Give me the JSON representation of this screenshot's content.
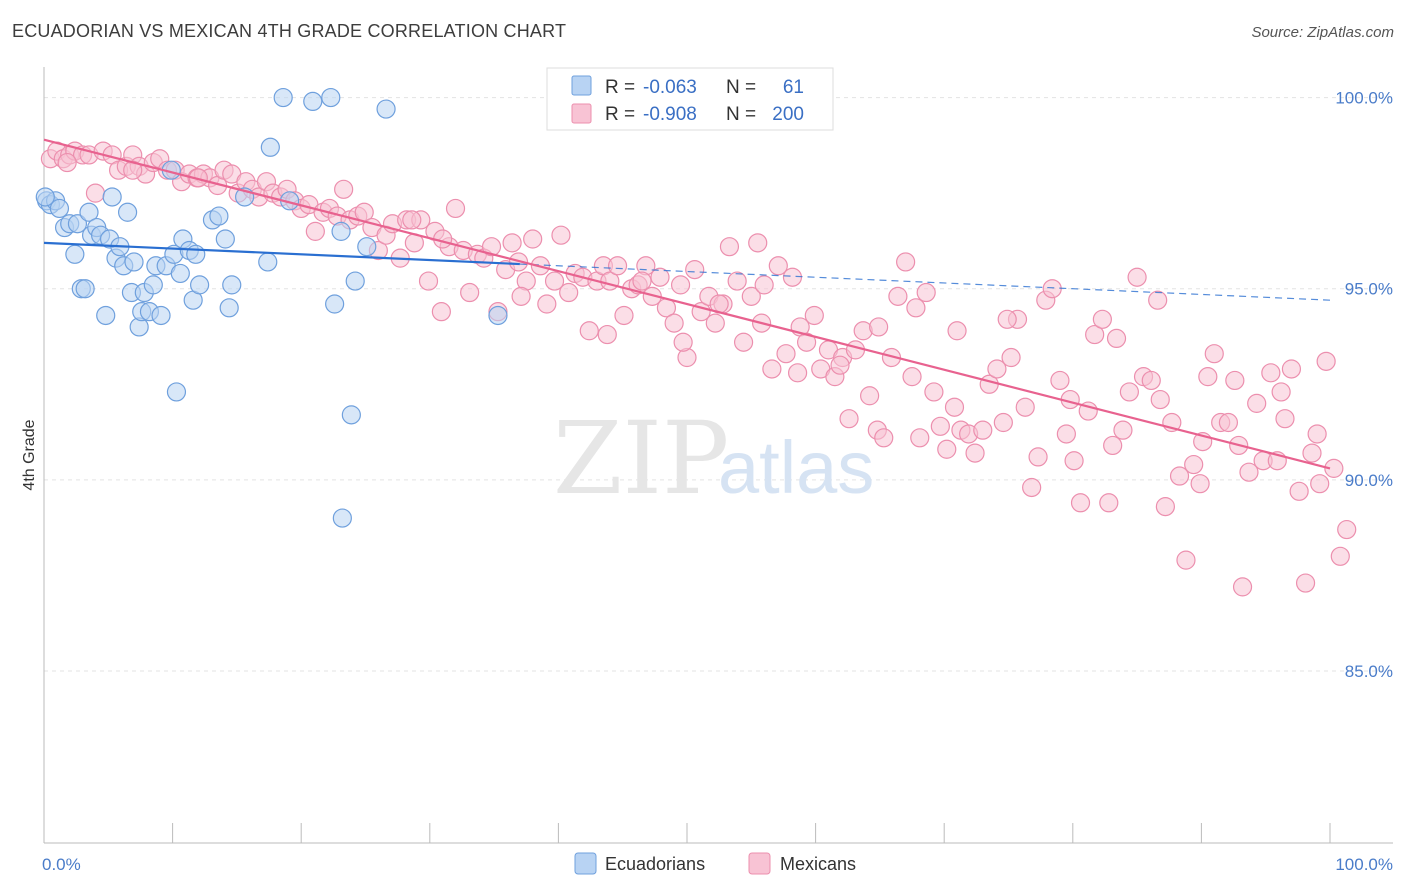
{
  "title": "ECUADORIAN VS MEXICAN 4TH GRADE CORRELATION CHART",
  "source": "Source: ZipAtlas.com",
  "watermark": {
    "zip": "ZIP",
    "atlas": "atlas"
  },
  "colors": {
    "ecuadorian_fill": "#b8d3f3",
    "ecuadorian_stroke": "#6fa0dd",
    "ecuadorian_line": "#2a6fd1",
    "mexican_fill": "#f8c3d4",
    "mexican_stroke": "#ec8fae",
    "mexican_line": "#e8628f",
    "tick_text": "#4a7cc9",
    "grid": "#e3e3e3"
  },
  "legend": {
    "rows": [
      {
        "r_label": "R = ",
        "r_value": "-0.063",
        "n_label": "N = ",
        "n_value": "61"
      },
      {
        "r_label": "R = ",
        "r_value": "-0.908",
        "n_label": "N = ",
        "n_value": "200"
      }
    ]
  },
  "bottom_legend": [
    "Ecuadorians",
    "Mexicans"
  ],
  "chart_data": {
    "type": "scatter",
    "xlabel": "",
    "ylabel": "4th Grade",
    "xlim": [
      0,
      100
    ],
    "ylim": [
      80.5,
      100.8
    ],
    "x_tick_labels": [
      "0.0%",
      "100.0%"
    ],
    "y_ticks": [
      85,
      90,
      95,
      100
    ],
    "y_tick_labels": [
      "85.0%",
      "90.0%",
      "95.0%",
      "100.0%"
    ],
    "grid": true,
    "series": [
      {
        "name": "Ecuadorians",
        "trend": {
          "x0": 0,
          "y0": 96.2,
          "x1": 100,
          "y1": 94.7,
          "solid_until": 37
        },
        "points": [
          [
            0.2,
            97.3
          ],
          [
            0.5,
            97.2
          ],
          [
            0.9,
            97.3
          ],
          [
            1.2,
            97.1
          ],
          [
            1.6,
            96.6
          ],
          [
            2.0,
            96.7
          ],
          [
            2.4,
            95.9
          ],
          [
            2.6,
            96.7
          ],
          [
            2.9,
            95.0
          ],
          [
            3.2,
            95.0
          ],
          [
            3.5,
            97.0
          ],
          [
            3.7,
            96.4
          ],
          [
            4.1,
            96.6
          ],
          [
            4.4,
            96.4
          ],
          [
            4.8,
            94.3
          ],
          [
            5.1,
            96.3
          ],
          [
            5.3,
            97.4
          ],
          [
            5.6,
            95.8
          ],
          [
            5.9,
            96.1
          ],
          [
            6.2,
            95.6
          ],
          [
            6.5,
            97.0
          ],
          [
            6.8,
            94.9
          ],
          [
            7.0,
            95.7
          ],
          [
            7.4,
            94.0
          ],
          [
            7.6,
            94.4
          ],
          [
            7.8,
            94.9
          ],
          [
            8.2,
            94.4
          ],
          [
            8.5,
            95.1
          ],
          [
            8.7,
            95.6
          ],
          [
            9.1,
            94.3
          ],
          [
            9.5,
            95.6
          ],
          [
            9.9,
            98.1
          ],
          [
            10.1,
            95.9
          ],
          [
            10.3,
            92.3
          ],
          [
            10.6,
            95.4
          ],
          [
            10.8,
            96.3
          ],
          [
            11.3,
            96.0
          ],
          [
            11.6,
            94.7
          ],
          [
            11.8,
            95.9
          ],
          [
            12.1,
            95.1
          ],
          [
            13.1,
            96.8
          ],
          [
            13.6,
            96.9
          ],
          [
            14.1,
            96.3
          ],
          [
            14.4,
            94.5
          ],
          [
            14.6,
            95.1
          ],
          [
            15.6,
            97.4
          ],
          [
            17.4,
            95.7
          ],
          [
            17.6,
            98.7
          ],
          [
            18.6,
            100.0
          ],
          [
            19.1,
            97.3
          ],
          [
            20.9,
            99.9
          ],
          [
            22.3,
            100.0
          ],
          [
            22.6,
            94.6
          ],
          [
            23.1,
            96.5
          ],
          [
            23.2,
            89.0
          ],
          [
            23.9,
            91.7
          ],
          [
            24.2,
            95.2
          ],
          [
            25.1,
            96.1
          ],
          [
            26.6,
            99.7
          ],
          [
            35.3,
            94.3
          ],
          [
            0.1,
            97.4
          ]
        ]
      },
      {
        "name": "Mexicans",
        "trend": {
          "x0": 0,
          "y0": 98.9,
          "x1": 100,
          "y1": 90.3
        },
        "points": [
          [
            0.5,
            98.4
          ],
          [
            1.0,
            98.6
          ],
          [
            1.5,
            98.4
          ],
          [
            2.0,
            98.5
          ],
          [
            2.4,
            98.6
          ],
          [
            3.0,
            98.5
          ],
          [
            3.5,
            98.5
          ],
          [
            4.0,
            97.5
          ],
          [
            4.6,
            98.6
          ],
          [
            5.3,
            98.5
          ],
          [
            5.8,
            98.1
          ],
          [
            6.4,
            98.2
          ],
          [
            6.9,
            98.5
          ],
          [
            7.4,
            98.2
          ],
          [
            7.9,
            98.0
          ],
          [
            8.5,
            98.3
          ],
          [
            9.0,
            98.4
          ],
          [
            9.6,
            98.1
          ],
          [
            10.2,
            98.1
          ],
          [
            10.7,
            97.8
          ],
          [
            11.3,
            98.0
          ],
          [
            11.9,
            97.9
          ],
          [
            12.4,
            98.0
          ],
          [
            12.9,
            97.9
          ],
          [
            13.5,
            97.7
          ],
          [
            14.0,
            98.1
          ],
          [
            14.6,
            98.0
          ],
          [
            15.1,
            97.5
          ],
          [
            15.7,
            97.8
          ],
          [
            16.2,
            97.6
          ],
          [
            16.7,
            97.4
          ],
          [
            17.3,
            97.8
          ],
          [
            17.8,
            97.5
          ],
          [
            18.4,
            97.4
          ],
          [
            18.9,
            97.6
          ],
          [
            19.5,
            97.3
          ],
          [
            20.0,
            97.1
          ],
          [
            20.6,
            97.2
          ],
          [
            21.1,
            96.5
          ],
          [
            21.7,
            97.0
          ],
          [
            22.2,
            97.1
          ],
          [
            22.8,
            96.9
          ],
          [
            23.3,
            97.6
          ],
          [
            23.8,
            96.8
          ],
          [
            24.4,
            96.9
          ],
          [
            24.9,
            97.0
          ],
          [
            25.5,
            96.6
          ],
          [
            26.0,
            96.0
          ],
          [
            26.6,
            96.4
          ],
          [
            27.1,
            96.7
          ],
          [
            27.7,
            95.8
          ],
          [
            28.2,
            96.8
          ],
          [
            28.8,
            96.2
          ],
          [
            29.3,
            96.8
          ],
          [
            29.9,
            95.2
          ],
          [
            30.4,
            96.5
          ],
          [
            30.9,
            94.4
          ],
          [
            31.5,
            96.1
          ],
          [
            32.0,
            97.1
          ],
          [
            32.6,
            96.0
          ],
          [
            33.1,
            94.9
          ],
          [
            33.7,
            95.9
          ],
          [
            34.2,
            95.8
          ],
          [
            34.8,
            96.1
          ],
          [
            35.3,
            94.4
          ],
          [
            35.9,
            95.5
          ],
          [
            36.4,
            96.2
          ],
          [
            36.9,
            95.7
          ],
          [
            37.5,
            95.2
          ],
          [
            38.0,
            96.3
          ],
          [
            38.6,
            95.6
          ],
          [
            39.1,
            94.6
          ],
          [
            39.7,
            95.2
          ],
          [
            40.2,
            96.4
          ],
          [
            40.8,
            94.9
          ],
          [
            41.3,
            95.4
          ],
          [
            41.9,
            95.3
          ],
          [
            42.4,
            93.9
          ],
          [
            43.0,
            95.2
          ],
          [
            43.5,
            95.6
          ],
          [
            44.0,
            95.2
          ],
          [
            44.6,
            95.6
          ],
          [
            45.1,
            94.3
          ],
          [
            45.7,
            95.0
          ],
          [
            46.2,
            95.1
          ],
          [
            46.8,
            95.6
          ],
          [
            47.3,
            94.8
          ],
          [
            47.9,
            95.3
          ],
          [
            48.4,
            94.5
          ],
          [
            49.0,
            94.1
          ],
          [
            49.5,
            95.1
          ],
          [
            50.0,
            93.2
          ],
          [
            50.6,
            95.5
          ],
          [
            51.1,
            94.4
          ],
          [
            51.7,
            94.8
          ],
          [
            52.2,
            94.1
          ],
          [
            52.8,
            94.6
          ],
          [
            53.3,
            96.1
          ],
          [
            53.9,
            95.2
          ],
          [
            54.4,
            93.6
          ],
          [
            55.0,
            94.8
          ],
          [
            55.5,
            96.2
          ],
          [
            56.0,
            95.1
          ],
          [
            56.6,
            92.9
          ],
          [
            57.1,
            95.6
          ],
          [
            57.7,
            93.3
          ],
          [
            58.2,
            95.3
          ],
          [
            58.8,
            94.0
          ],
          [
            59.3,
            93.6
          ],
          [
            59.9,
            94.3
          ],
          [
            60.4,
            92.9
          ],
          [
            61.0,
            93.4
          ],
          [
            61.5,
            92.7
          ],
          [
            62.1,
            93.2
          ],
          [
            62.6,
            91.6
          ],
          [
            63.1,
            93.4
          ],
          [
            63.7,
            93.9
          ],
          [
            64.2,
            92.2
          ],
          [
            64.8,
            91.3
          ],
          [
            65.3,
            91.1
          ],
          [
            65.9,
            93.2
          ],
          [
            66.4,
            94.8
          ],
          [
            67.0,
            95.7
          ],
          [
            67.5,
            92.7
          ],
          [
            68.1,
            91.1
          ],
          [
            68.6,
            94.9
          ],
          [
            69.2,
            92.3
          ],
          [
            69.7,
            91.4
          ],
          [
            70.2,
            90.8
          ],
          [
            70.8,
            91.9
          ],
          [
            71.3,
            91.3
          ],
          [
            71.9,
            91.2
          ],
          [
            72.4,
            90.7
          ],
          [
            73.0,
            91.3
          ],
          [
            73.5,
            92.5
          ],
          [
            74.1,
            92.9
          ],
          [
            74.6,
            91.5
          ],
          [
            75.2,
            93.2
          ],
          [
            75.7,
            94.2
          ],
          [
            76.3,
            91.9
          ],
          [
            76.8,
            89.8
          ],
          [
            77.3,
            90.6
          ],
          [
            77.9,
            94.7
          ],
          [
            78.4,
            95.0
          ],
          [
            79.0,
            92.6
          ],
          [
            79.5,
            91.2
          ],
          [
            80.1,
            90.5
          ],
          [
            80.6,
            89.4
          ],
          [
            81.2,
            91.8
          ],
          [
            81.7,
            93.8
          ],
          [
            82.3,
            94.2
          ],
          [
            82.8,
            89.4
          ],
          [
            83.4,
            93.7
          ],
          [
            83.9,
            91.3
          ],
          [
            84.4,
            92.3
          ],
          [
            85.0,
            95.3
          ],
          [
            85.5,
            92.7
          ],
          [
            86.1,
            92.6
          ],
          [
            86.6,
            94.7
          ],
          [
            87.2,
            89.3
          ],
          [
            87.7,
            91.5
          ],
          [
            88.3,
            90.1
          ],
          [
            88.8,
            87.9
          ],
          [
            89.4,
            90.4
          ],
          [
            89.9,
            89.9
          ],
          [
            90.5,
            92.7
          ],
          [
            91.0,
            93.3
          ],
          [
            91.5,
            91.5
          ],
          [
            92.1,
            91.5
          ],
          [
            92.6,
            92.6
          ],
          [
            93.2,
            87.2
          ],
          [
            93.7,
            90.2
          ],
          [
            94.3,
            92.0
          ],
          [
            94.8,
            90.5
          ],
          [
            95.4,
            92.8
          ],
          [
            95.9,
            90.5
          ],
          [
            96.5,
            91.6
          ],
          [
            97.0,
            92.9
          ],
          [
            97.6,
            89.7
          ],
          [
            98.1,
            87.3
          ],
          [
            98.6,
            90.7
          ],
          [
            99.2,
            89.9
          ],
          [
            99.7,
            93.1
          ],
          [
            100.3,
            90.3
          ],
          [
            100.8,
            88.0
          ],
          [
            101.3,
            88.7
          ],
          [
            1.8,
            98.3
          ],
          [
            6.9,
            98.1
          ],
          [
            12.0,
            97.9
          ],
          [
            28.6,
            96.8
          ],
          [
            31.0,
            96.3
          ],
          [
            37.1,
            94.8
          ],
          [
            43.8,
            93.8
          ],
          [
            46.5,
            95.2
          ],
          [
            49.7,
            93.6
          ],
          [
            52.5,
            94.6
          ],
          [
            55.8,
            94.1
          ],
          [
            58.6,
            92.8
          ],
          [
            61.9,
            93.0
          ],
          [
            64.9,
            94.0
          ],
          [
            67.8,
            94.5
          ],
          [
            71.0,
            93.9
          ],
          [
            74.9,
            94.2
          ],
          [
            79.8,
            92.1
          ],
          [
            83.1,
            90.9
          ],
          [
            86.8,
            92.1
          ],
          [
            90.1,
            91.0
          ],
          [
            92.9,
            90.9
          ],
          [
            96.2,
            92.3
          ],
          [
            99.0,
            91.2
          ]
        ]
      }
    ]
  }
}
